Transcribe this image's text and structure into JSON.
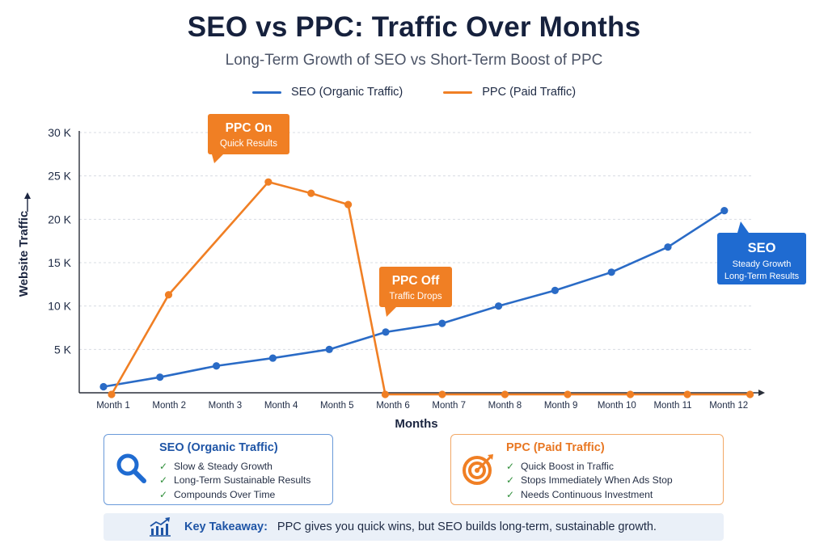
{
  "colors": {
    "seo": "#2a6bc6",
    "ppc": "#f07f24",
    "grid": "#d8dce3",
    "axis": "#2a2f3a",
    "text": "#1b2540"
  },
  "header": {
    "title": "SEO vs PPC: Traffic Over Months",
    "subtitle": "Long-Term Growth of SEO vs Short-Term Boost of PPC"
  },
  "legend": {
    "seo": "SEO (Organic Traffic)",
    "ppc": "PPC (Paid Traffic)"
  },
  "chart_data": {
    "type": "line",
    "title": "SEO vs PPC: Traffic Over Months",
    "subtitle": "Long-Term Growth of SEO vs Short-Term Boost of PPC",
    "xlabel": "Months",
    "ylabel": "Website Traffic",
    "categories": [
      "Month 1",
      "Month 2",
      "Month 3",
      "Month 4",
      "Month 5",
      "Month 6",
      "Month 7",
      "Month 8",
      "Month 9",
      "Month 10",
      "Month 11",
      "Month 12"
    ],
    "yticks": [
      5000,
      10000,
      15000,
      20000,
      25000,
      30000
    ],
    "ytick_labels": [
      "5 K",
      "10 K",
      "15 K",
      "20 K",
      "25 K",
      "30 K"
    ],
    "ylim": [
      0,
      30000
    ],
    "grid": true,
    "legend_position": "top",
    "series": [
      {
        "name": "SEO (Organic Traffic)",
        "color": "#2a6bc6",
        "x": [
          "Month 1",
          "Month 2",
          "Month 3",
          "Month 4",
          "Month 5",
          "Month 6",
          "Month 7",
          "Month 8",
          "Month 9",
          "Month 10",
          "Month 11",
          "Month 12"
        ],
        "values": [
          700,
          1800,
          3100,
          4000,
          5000,
          7000,
          8000,
          10000,
          11800,
          13900,
          16800,
          21000
        ]
      },
      {
        "name": "PPC (Paid Traffic)",
        "color": "#f07f24",
        "x": [
          "Month 1",
          "Month 2",
          "Month 3",
          "Month 4",
          "Month 5",
          "Month 6",
          "Month 7",
          "Month 8",
          "Month 9",
          "Month 10",
          "Month 11",
          "Month 12"
        ],
        "values": [
          0,
          11300,
          24300,
          23000,
          21700,
          0,
          0,
          0,
          0,
          0,
          0,
          0
        ]
      }
    ],
    "annotations": [
      {
        "id": "ppc-on",
        "title": "PPC On",
        "text": "Quick Results",
        "color": "#f07f24",
        "target": "Month 3"
      },
      {
        "id": "ppc-off",
        "title": "PPC Off",
        "text": "Traffic Drops",
        "color": "#f07f24",
        "target": "Month 6"
      },
      {
        "id": "seo-note",
        "title": "SEO",
        "text1": "Steady Growth",
        "text2": "Long-Term Results",
        "color": "#1f6bd1",
        "target": "Month 12"
      }
    ]
  },
  "seo_box": {
    "title": "SEO (Organic Traffic)",
    "icon": "magnifier-icon",
    "items": [
      "Slow & Steady Growth",
      "Long-Term Sustainable Results",
      "Compounds Over Time"
    ]
  },
  "ppc_box": {
    "title": "PPC (Paid Traffic)",
    "icon": "target-icon",
    "items": [
      "Quick Boost in Traffic",
      "Stops Immediately When Ads Stop",
      "Needs Continuous Investment"
    ]
  },
  "takeaway": {
    "icon": "growth-chart-icon",
    "label": "Key Takeaway:",
    "text": "PPC gives you quick wins, but SEO builds long-term, sustainable growth."
  }
}
